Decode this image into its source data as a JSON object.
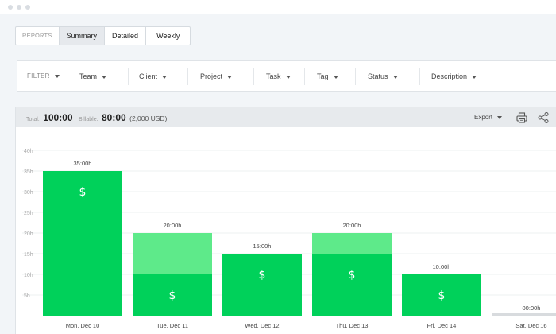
{
  "tabs": {
    "label": "REPORTS",
    "items": [
      {
        "label": "Summary",
        "active": true
      },
      {
        "label": "Detailed",
        "active": false
      },
      {
        "label": "Weekly",
        "active": false
      }
    ]
  },
  "filters": {
    "label": "FILTER",
    "items": [
      "Team",
      "Client",
      "Project",
      "Task",
      "Tag",
      "Status",
      "Description"
    ]
  },
  "totals": {
    "total_label": "Total:",
    "total_value": "100:00",
    "billable_label": "Billable:",
    "billable_value": "80:00",
    "billable_amount": "(2,000 USD)"
  },
  "toolbar": {
    "export_label": "Export",
    "print_icon": "printer-icon",
    "share_icon": "share-icon"
  },
  "colors": {
    "billable": "#00d15a",
    "non_billable": "#5eea8a",
    "empty": "#d8dbde"
  },
  "chart_data": {
    "type": "bar",
    "stacked": true,
    "categories": [
      "Mon, Dec 10",
      "Tue, Dec 11",
      "Wed, Dec 12",
      "Thu, Dec 13",
      "Fri, Dec 14",
      "Sat, Dec 16"
    ],
    "series": [
      {
        "values": [
          35,
          10,
          15,
          15,
          10,
          0
        ]
      },
      {
        "values": [
          0,
          10,
          0,
          5,
          0,
          0
        ]
      }
    ],
    "totals": [
      35,
      20,
      15,
      20,
      10,
      0
    ],
    "data_labels": [
      "35:00h",
      "20:00h",
      "15:00h",
      "20:00h",
      "10:00h",
      "00:00h"
    ],
    "yticks": [
      "5h",
      "10h",
      "15h",
      "20h",
      "25h",
      "30h",
      "35h",
      "40h"
    ],
    "ylim": [
      0,
      40
    ],
    "grid": true,
    "dollar_symbol": "$"
  }
}
